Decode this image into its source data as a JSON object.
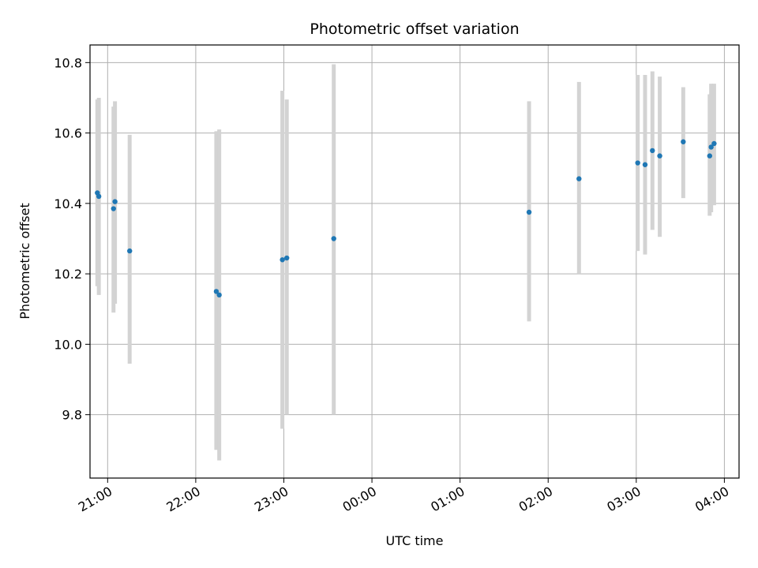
{
  "chart_data": {
    "type": "scatter",
    "title": "Photometric offset variation",
    "xlabel": "UTC time",
    "ylabel": "Photometric offset",
    "xlim": [
      "20:48",
      "04:10"
    ],
    "ylim": [
      9.62,
      10.85
    ],
    "x_ticks": [
      "21:00",
      "22:00",
      "23:00",
      "00:00",
      "01:00",
      "02:00",
      "03:00",
      "04:00"
    ],
    "y_ticks": [
      "9.8",
      "10.0",
      "10.2",
      "10.4",
      "10.6",
      "10.8"
    ],
    "grid": true,
    "marker_color": "#1f77b4",
    "errorbar_color": "#d3d3d3",
    "points": [
      {
        "t": "20:53",
        "y": 10.43,
        "lo": 10.165,
        "hi": 10.695
      },
      {
        "t": "20:54",
        "y": 10.42,
        "lo": 10.14,
        "hi": 10.7
      },
      {
        "t": "21:04",
        "y": 10.385,
        "lo": 10.09,
        "hi": 10.675
      },
      {
        "t": "21:05",
        "y": 10.405,
        "lo": 10.115,
        "hi": 10.69
      },
      {
        "t": "21:15",
        "y": 10.265,
        "lo": 9.945,
        "hi": 10.595
      },
      {
        "t": "22:14",
        "y": 10.15,
        "lo": 9.7,
        "hi": 10.605
      },
      {
        "t": "22:16",
        "y": 10.14,
        "lo": 9.67,
        "hi": 10.61
      },
      {
        "t": "22:59",
        "y": 10.24,
        "lo": 9.76,
        "hi": 10.72
      },
      {
        "t": "23:02",
        "y": 10.245,
        "lo": 9.8,
        "hi": 10.695
      },
      {
        "t": "23:34",
        "y": 10.3,
        "lo": 9.8,
        "hi": 10.795
      },
      {
        "t": "01:47",
        "y": 10.375,
        "lo": 10.065,
        "hi": 10.69
      },
      {
        "t": "02:21",
        "y": 10.47,
        "lo": 10.2,
        "hi": 10.745
      },
      {
        "t": "03:01",
        "y": 10.515,
        "lo": 10.265,
        "hi": 10.765
      },
      {
        "t": "03:06",
        "y": 10.51,
        "lo": 10.255,
        "hi": 10.765
      },
      {
        "t": "03:11",
        "y": 10.55,
        "lo": 10.325,
        "hi": 10.775
      },
      {
        "t": "03:16",
        "y": 10.535,
        "lo": 10.305,
        "hi": 10.76
      },
      {
        "t": "03:32",
        "y": 10.575,
        "lo": 10.415,
        "hi": 10.73
      },
      {
        "t": "03:50",
        "y": 10.535,
        "lo": 10.365,
        "hi": 10.71
      },
      {
        "t": "03:51",
        "y": 10.56,
        "lo": 10.375,
        "hi": 10.74
      },
      {
        "t": "03:53",
        "y": 10.57,
        "lo": 10.395,
        "hi": 10.74
      }
    ]
  }
}
